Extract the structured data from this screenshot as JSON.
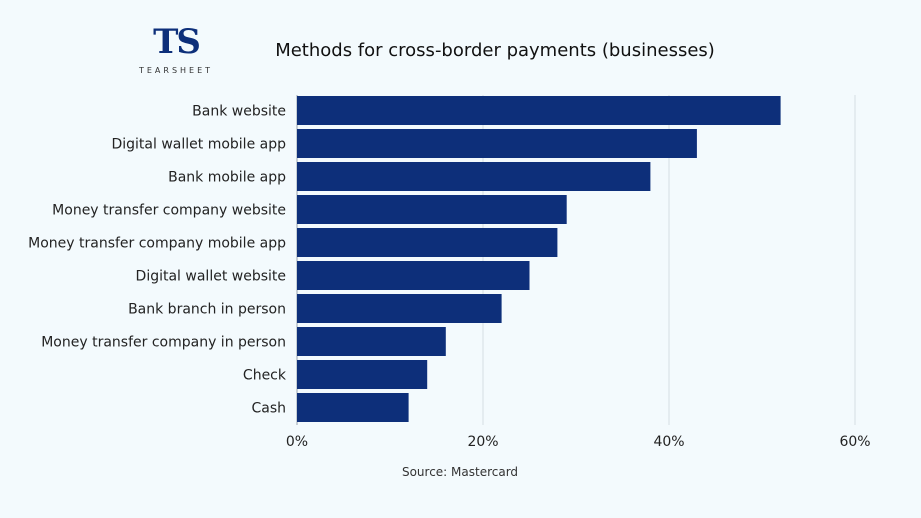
{
  "logo": {
    "mark": "TS",
    "word": "TEARSHEET"
  },
  "source": "Source: Mastercard",
  "chart_data": {
    "type": "bar",
    "orientation": "horizontal",
    "title": "Methods for cross-border payments (businesses)",
    "categories": [
      "Bank website",
      "Digital wallet mobile app",
      "Bank mobile app",
      "Money transfer company website",
      "Money transfer company mobile app",
      "Digital wallet website",
      "Bank branch in person",
      "Money transfer company in person",
      "Check",
      "Cash"
    ],
    "values": [
      52,
      43,
      38,
      29,
      28,
      25,
      22,
      16,
      14,
      12
    ],
    "xlim": [
      0,
      60
    ],
    "xticks": [
      0,
      20,
      40,
      60
    ],
    "xtick_labels": [
      "0%",
      "20%",
      "40%",
      "60%"
    ],
    "grid": true,
    "bar_color": "#0d2f7a"
  }
}
